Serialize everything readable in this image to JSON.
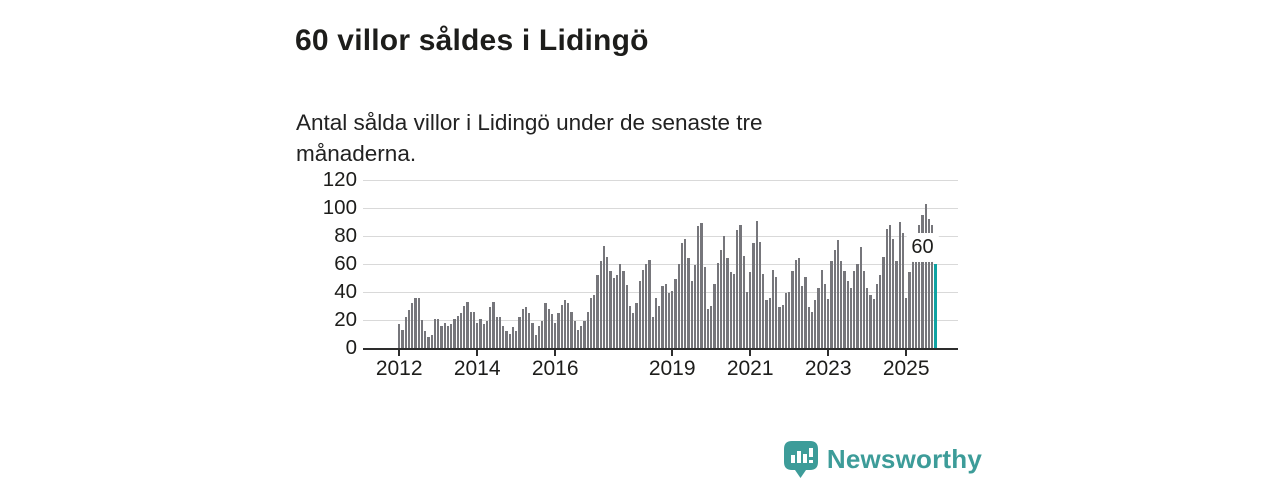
{
  "header": {
    "title": "60 villor såldes i Lidingö",
    "subtitle": "Antal sålda villor i Lidingö under de senaste tre månaderna."
  },
  "chart_data": {
    "type": "bar",
    "title": "60 villor såldes i Lidingö",
    "subtitle": "Antal sålda villor i Lidingö under de senaste tre månaderna.",
    "unit": "antal sålda villor (rullande tre månader)",
    "start_month": "2012-01",
    "end_month": "2025-10",
    "values": [
      17,
      13,
      22,
      27,
      32,
      36,
      36,
      20,
      12,
      8,
      9,
      21,
      21,
      16,
      18,
      16,
      17,
      21,
      23,
      25,
      30,
      33,
      26,
      26,
      18,
      21,
      17,
      19,
      29,
      33,
      22,
      22,
      16,
      12,
      10,
      15,
      12,
      22,
      28,
      29,
      25,
      18,
      9,
      16,
      19,
      32,
      28,
      24,
      18,
      25,
      31,
      34,
      32,
      26,
      19,
      13,
      16,
      19,
      26,
      36,
      38,
      52,
      62,
      73,
      65,
      55,
      50,
      52,
      60,
      55,
      45,
      30,
      25,
      32,
      48,
      56,
      60,
      63,
      22,
      36,
      30,
      44,
      46,
      39,
      41,
      49,
      60,
      75,
      78,
      64,
      48,
      59,
      87,
      89,
      58,
      28,
      30,
      46,
      61,
      70,
      80,
      64,
      54,
      53,
      84,
      88,
      66,
      40,
      54,
      75,
      91,
      76,
      53,
      34,
      36,
      56,
      51,
      29,
      31,
      39,
      40,
      55,
      63,
      64,
      44,
      51,
      29,
      26,
      34,
      43,
      56,
      46,
      35,
      62,
      70,
      77,
      62,
      55,
      48,
      43,
      55,
      60,
      72,
      55,
      43,
      38,
      35,
      46,
      52,
      65,
      85,
      88,
      78,
      62,
      90,
      82,
      36,
      54,
      65,
      72,
      88,
      95,
      103,
      92,
      88,
      60
    ],
    "ylim": [
      0,
      120
    ],
    "yticks": [
      0,
      20,
      40,
      60,
      80,
      100,
      120
    ],
    "xticks": [
      {
        "label": "2012",
        "month_index": 0
      },
      {
        "label": "2014",
        "month_index": 24
      },
      {
        "label": "2016",
        "month_index": 48
      },
      {
        "label": "2019",
        "month_index": 84
      },
      {
        "label": "2021",
        "month_index": 108
      },
      {
        "label": "2023",
        "month_index": 132
      },
      {
        "label": "2025",
        "month_index": 156
      }
    ],
    "grid": true,
    "legend": "none",
    "bar_color": "#76767b",
    "highlight_color": "#0fa3a3",
    "highlight": {
      "index": 165,
      "value": 60,
      "label": "60"
    }
  },
  "footer": {
    "brand": "Newsworthy",
    "brand_color": "#3d9c99",
    "logo_icon": "bar-chart-speech-bubble-icon"
  }
}
